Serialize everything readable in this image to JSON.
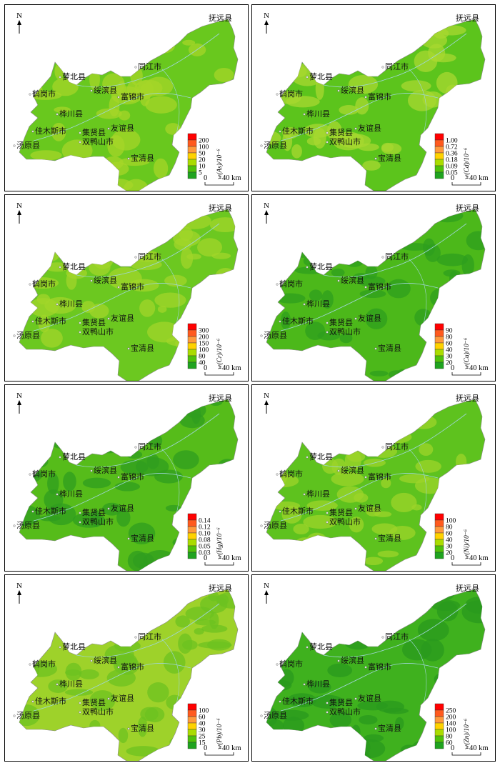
{
  "map": {
    "north_label": "N",
    "scale": {
      "zero": "0",
      "distance": "40 km"
    },
    "cities": [
      {
        "key": "fuyuan",
        "name": "抚远县"
      },
      {
        "key": "tongjiang",
        "name": "同江市"
      },
      {
        "key": "luobei",
        "name": "萝北县"
      },
      {
        "key": "suibin",
        "name": "绥滨县"
      },
      {
        "key": "fujin",
        "name": "富锦市"
      },
      {
        "key": "hegang",
        "name": "鹤岗市"
      },
      {
        "key": "huachuan",
        "name": "桦川县"
      },
      {
        "key": "jiamusi",
        "name": "佳木斯市"
      },
      {
        "key": "jixian",
        "name": "集贤县"
      },
      {
        "key": "youyi",
        "name": "友谊县"
      },
      {
        "key": "tangyuan",
        "name": "汤原县"
      },
      {
        "key": "shuangyashan",
        "name": "双鸭山市"
      },
      {
        "key": "baoqing",
        "name": "宝清县"
      }
    ],
    "legend_colors": [
      "#ff0000",
      "#ff5a1e",
      "#ff9a3c",
      "#ffd200",
      "#aadc00",
      "#4fc20a",
      "#1fa31f"
    ],
    "panels": [
      {
        "id": "as",
        "legend_title": "w(As)/10⁻⁶",
        "legend_values": [
          "200",
          "100",
          "50",
          "20",
          "10",
          "5"
        ],
        "base_color": "#69c81e",
        "patch_color": "#a5d628"
      },
      {
        "id": "cd",
        "legend_title": "w(Cd)/10⁻⁶",
        "legend_values": [
          "1.00",
          "0.72",
          "0.36",
          "0.18",
          "0.09",
          "0.05"
        ],
        "base_color": "#5cc41c",
        "patch_color": "#a8d830"
      },
      {
        "id": "cr",
        "legend_title": "w(Cr)/10⁻⁶",
        "legend_values": [
          "300",
          "200",
          "150",
          "100",
          "80",
          "40"
        ],
        "base_color": "#6cc820",
        "patch_color": "#a2d62a"
      },
      {
        "id": "cu",
        "legend_title": "w(Cu)/10⁻⁶",
        "legend_values": [
          "90",
          "80",
          "60",
          "40",
          "30",
          "20"
        ],
        "base_color": "#4cb81a",
        "patch_color": "#2e9f1e"
      },
      {
        "id": "hg",
        "legend_title": "w(Hg)/10⁻⁶",
        "legend_values": [
          "0.14",
          "0.12",
          "0.10",
          "0.08",
          "0.05",
          "0.03"
        ],
        "base_color": "#56bc1a",
        "patch_color": "#2f9e1f"
      },
      {
        "id": "ni",
        "legend_title": "w(Ni)/10⁻⁶",
        "legend_values": [
          "100",
          "80",
          "60",
          "40",
          "30",
          "20"
        ],
        "base_color": "#5ec21e",
        "patch_color": "#9ed42a"
      },
      {
        "id": "pb",
        "legend_title": "w(Pb)/10⁻⁶",
        "legend_values": [
          "100",
          "60",
          "40",
          "30",
          "25",
          "15"
        ],
        "base_color": "#9ed22a",
        "patch_color": "#6cc220"
      },
      {
        "id": "zn",
        "legend_title": "w(Zn)/10⁻⁶",
        "legend_values": [
          "250",
          "200",
          "140",
          "100",
          "80",
          "60"
        ],
        "base_color": "#3fb11e",
        "patch_color": "#2a9a1e"
      }
    ]
  }
}
